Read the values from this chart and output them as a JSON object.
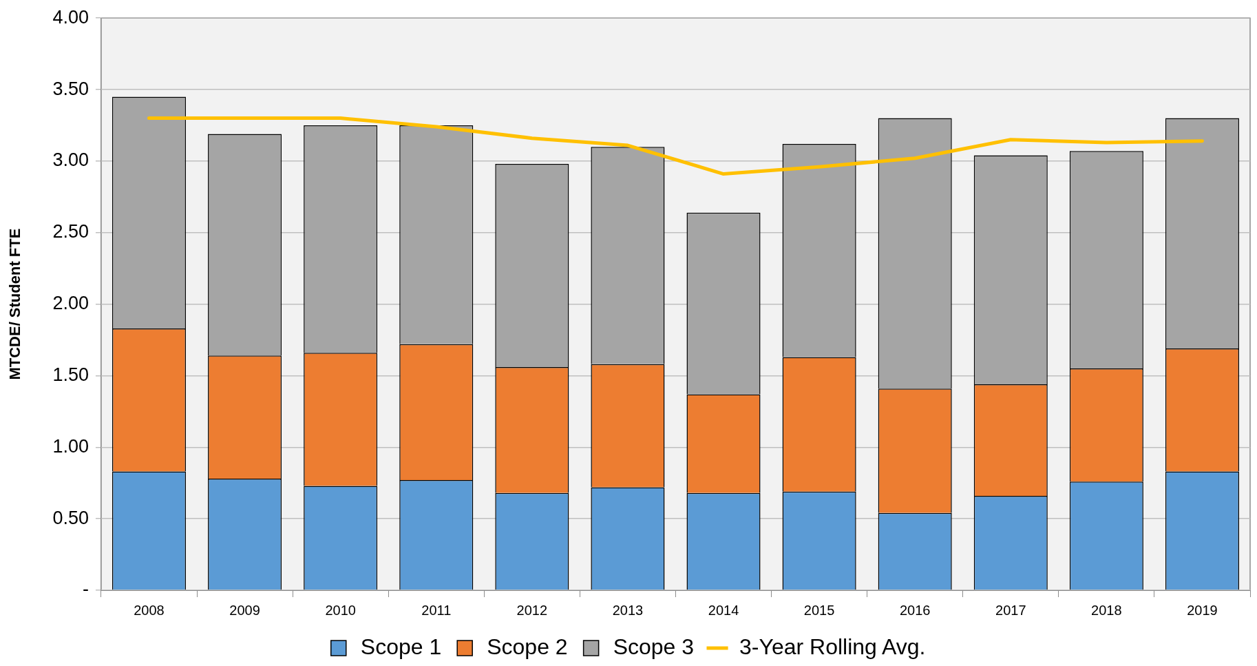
{
  "chart_data": {
    "type": "bar",
    "stacked": true,
    "ylabel": "MTCDE/ Student FTE",
    "categories": [
      "2008",
      "2009",
      "2010",
      "2011",
      "2012",
      "2013",
      "2014",
      "2015",
      "2016",
      "2017",
      "2018",
      "2019"
    ],
    "series": [
      {
        "name": "Scope 1",
        "color": "#5b9bd5",
        "values": [
          0.83,
          0.78,
          0.73,
          0.77,
          0.68,
          0.72,
          0.68,
          0.69,
          0.54,
          0.66,
          0.76,
          0.83
        ]
      },
      {
        "name": "Scope 2",
        "color": "#ed7d31",
        "values": [
          1.0,
          0.86,
          0.93,
          0.95,
          0.88,
          0.86,
          0.69,
          0.94,
          0.87,
          0.78,
          0.79,
          0.86
        ]
      },
      {
        "name": "Scope 3",
        "color": "#a5a5a5",
        "values": [
          1.62,
          1.55,
          1.59,
          1.53,
          1.42,
          1.52,
          1.27,
          1.49,
          1.89,
          1.6,
          1.52,
          1.61
        ]
      },
      {
        "name": "3-Year Rolling Avg.",
        "type": "line",
        "color": "#ffc000",
        "values": [
          3.3,
          3.3,
          3.3,
          3.24,
          3.16,
          3.11,
          2.91,
          2.96,
          3.02,
          3.15,
          3.13,
          3.14
        ]
      }
    ],
    "ylim": [
      0,
      4
    ],
    "yticks": [
      {
        "value": 0,
        "label": "-"
      },
      {
        "value": 0.5,
        "label": "0.50"
      },
      {
        "value": 1,
        "label": "1.00"
      },
      {
        "value": 1.5,
        "label": "1.50"
      },
      {
        "value": 2,
        "label": "2.00"
      },
      {
        "value": 2.5,
        "label": "2.50"
      },
      {
        "value": 3,
        "label": "3.00"
      },
      {
        "value": 3.5,
        "label": "3.50"
      },
      {
        "value": 4,
        "label": "4.00"
      }
    ],
    "grid": "y",
    "legend": "bottom",
    "marker": "none"
  }
}
